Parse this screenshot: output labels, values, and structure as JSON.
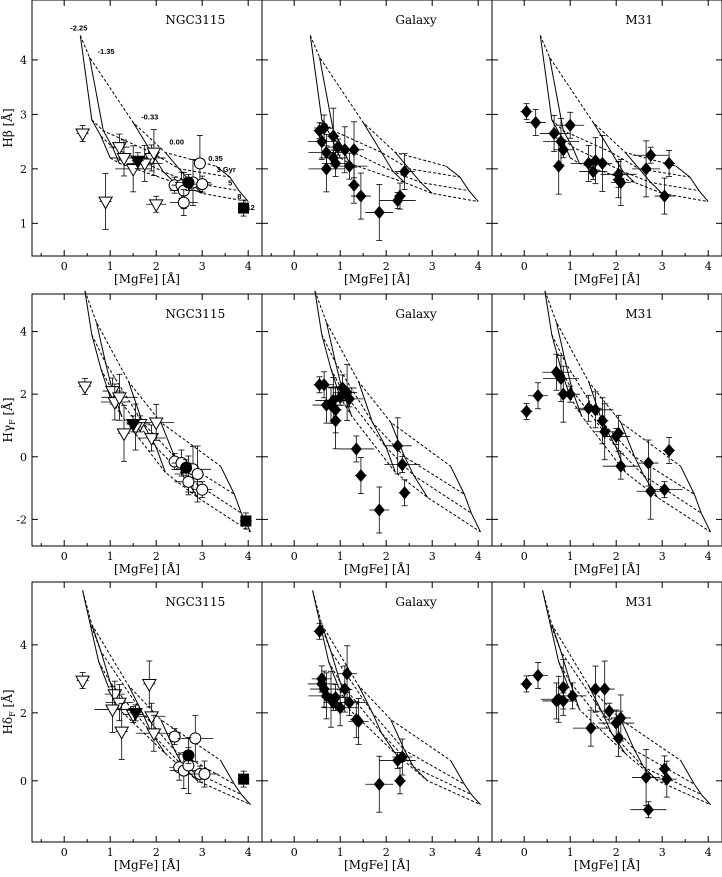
{
  "figure": {
    "x_axis_label": "[MgFe] [Å]",
    "x_ticks": [
      0,
      1,
      2,
      3,
      4
    ],
    "xlim": [
      -0.7,
      4.3
    ],
    "rows": [
      {
        "index_label": "Hβ [Å]",
        "ylim": [
          0.4,
          5.1
        ],
        "y_ticks": [
          1,
          2,
          3,
          4
        ]
      },
      {
        "index_label": "Hγ_F [Å]",
        "ylim": [
          -2.85,
          5.2
        ],
        "y_ticks": [
          -2,
          0,
          2,
          4
        ]
      },
      {
        "index_label": "Hδ_F [Å]",
        "ylim": [
          -1.8,
          5.85
        ],
        "y_ticks": [
          0,
          2,
          4
        ]
      }
    ],
    "columns": [
      "NGC3115",
      "Galaxy",
      "M31"
    ],
    "grid_annotations": {
      "metallicity_labels": [
        "-2.25",
        "-1.35",
        "-0.33",
        "0.00",
        "0.35"
      ],
      "age_labels": [
        "3 Gyr",
        "5",
        "8",
        "12"
      ]
    }
  },
  "chart_data": [
    {
      "type": "scatter",
      "title": "NGC3115",
      "xlabel": "[MgFe] [Å]",
      "ylabel": "Hβ [Å]",
      "ylim": [
        0.4,
        5.1
      ],
      "series": [
        {
          "name": "",
          "marker": "open-triangle-down",
          "x": [
            0.4,
            1.2,
            1.3,
            1.5,
            0.9,
            2.0,
            1.9,
            1.75,
            1.95
          ],
          "y": [
            2.65,
            2.4,
            2.2,
            2.0,
            1.4,
            1.35,
            2.2,
            2.1,
            2.3
          ]
        },
        {
          "name": "",
          "marker": "filled-triangle-down",
          "x": [
            1.6
          ],
          "y": [
            2.15
          ]
        },
        {
          "name": "",
          "marker": "open-circle",
          "x": [
            2.4,
            2.55,
            2.6,
            2.8,
            2.95,
            3.0,
            2.6
          ],
          "y": [
            1.7,
            1.7,
            1.6,
            1.75,
            2.1,
            1.72,
            1.38
          ]
        },
        {
          "name": "",
          "marker": "filled-circle",
          "x": [
            2.7
          ],
          "y": [
            1.75
          ]
        },
        {
          "name": "",
          "marker": "filled-square",
          "x": [
            3.9
          ],
          "y": [
            1.28
          ]
        }
      ]
    },
    {
      "type": "scatter",
      "title": "Galaxy",
      "xlabel": "[MgFe] [Å]",
      "ylabel": "Hβ [Å]",
      "ylim": [
        0.4,
        5.1
      ],
      "series": [
        {
          "name": "",
          "marker": "filled-diamond",
          "x": [
            0.55,
            0.65,
            0.6,
            0.7,
            0.85,
            0.95,
            0.9,
            0.7,
            1.1,
            1.3,
            0.85,
            1.2,
            1.3,
            1.45,
            1.85,
            2.25,
            2.3,
            2.4
          ],
          "y": [
            2.7,
            2.75,
            2.5,
            2.0,
            2.6,
            2.4,
            2.1,
            2.3,
            2.35,
            2.35,
            2.2,
            2.05,
            1.7,
            1.5,
            1.2,
            1.42,
            1.5,
            1.95
          ]
        }
      ]
    },
    {
      "type": "scatter",
      "title": "M31",
      "xlabel": "[MgFe] [Å]",
      "ylabel": "Hβ [Å]",
      "ylim": [
        0.4,
        5.1
      ],
      "series": [
        {
          "name": "",
          "marker": "filled-diamond",
          "x": [
            0.05,
            0.25,
            0.65,
            0.8,
            0.75,
            0.85,
            1.0,
            1.4,
            1.55,
            1.7,
            1.5,
            2.05,
            2.05,
            2.1,
            2.65,
            2.75,
            3.15,
            3.05
          ],
          "y": [
            3.05,
            2.85,
            2.65,
            2.5,
            2.05,
            2.35,
            2.8,
            2.1,
            2.15,
            2.1,
            1.95,
            1.9,
            1.8,
            1.75,
            2.0,
            2.25,
            2.1,
            1.5
          ]
        }
      ]
    },
    {
      "type": "scatter",
      "title": "NGC3115",
      "xlabel": "[MgFe] [Å]",
      "ylabel": "Hγ_F [Å]",
      "ylim": [
        -2.85,
        5.2
      ],
      "series": [
        {
          "name": "",
          "marker": "open-triangle-down",
          "x": [
            0.45,
            1.05,
            1.1,
            1.2,
            1.3,
            1.65,
            1.9,
            2.0,
            1.55
          ],
          "y": [
            2.25,
            2.1,
            1.75,
            1.9,
            0.75,
            1.05,
            0.6,
            1.1,
            0.95
          ]
        },
        {
          "name": "",
          "marker": "filled-triangle-down",
          "x": [
            1.5
          ],
          "y": [
            1.05
          ]
        },
        {
          "name": "",
          "marker": "open-circle",
          "x": [
            2.4,
            2.55,
            2.7,
            2.8,
            2.9,
            3.0,
            2.7
          ],
          "y": [
            -0.15,
            -0.2,
            -0.55,
            -0.4,
            -0.55,
            -1.05,
            -0.8
          ]
        },
        {
          "name": "",
          "marker": "filled-circle",
          "x": [
            2.65
          ],
          "y": [
            -0.35
          ]
        },
        {
          "name": "",
          "marker": "filled-square",
          "x": [
            3.95
          ],
          "y": [
            -2.05
          ]
        }
      ]
    },
    {
      "type": "scatter",
      "title": "Galaxy",
      "xlabel": "[MgFe] [Å]",
      "ylabel": "Hγ_F [Å]",
      "ylim": [
        -2.85,
        5.2
      ],
      "series": [
        {
          "name": "",
          "marker": "filled-diamond",
          "x": [
            0.55,
            0.65,
            0.7,
            0.85,
            0.9,
            1.0,
            1.05,
            0.8,
            0.9,
            1.15,
            1.2,
            1.35,
            1.45,
            1.85,
            2.25,
            2.35,
            2.4
          ],
          "y": [
            2.3,
            2.3,
            1.65,
            1.8,
            1.15,
            1.9,
            2.2,
            1.65,
            1.5,
            2.05,
            1.85,
            0.25,
            -0.6,
            -1.7,
            0.35,
            -0.25,
            -1.15
          ]
        }
      ]
    },
    {
      "type": "scatter",
      "title": "M31",
      "xlabel": "[MgFe] [Å]",
      "ylabel": "Hγ_F [Å]",
      "ylim": [
        -2.85,
        5.2
      ],
      "series": [
        {
          "name": "",
          "marker": "filled-diamond",
          "x": [
            0.05,
            0.3,
            0.7,
            0.8,
            0.85,
            1.0,
            1.4,
            1.55,
            1.7,
            1.75,
            2.0,
            2.1,
            2.05,
            2.7,
            2.75,
            3.05,
            3.15
          ],
          "y": [
            1.45,
            1.95,
            2.7,
            2.5,
            2.0,
            2.0,
            1.55,
            1.5,
            1.15,
            0.8,
            0.65,
            -0.3,
            0.75,
            -0.2,
            -1.1,
            -1.05,
            0.2
          ]
        }
      ]
    },
    {
      "type": "scatter",
      "title": "NGC3115",
      "xlabel": "[MgFe] [Å]",
      "ylabel": "Hδ_F [Å]",
      "ylim": [
        -1.8,
        5.85
      ],
      "series": [
        {
          "name": "",
          "marker": "open-triangle-down",
          "x": [
            0.4,
            1.1,
            1.2,
            1.05,
            1.25,
            1.5,
            1.9,
            1.95,
            1.85
          ],
          "y": [
            2.95,
            2.55,
            2.3,
            2.1,
            1.45,
            1.95,
            1.9,
            1.4,
            2.85
          ]
        },
        {
          "name": "",
          "marker": "filled-triangle-down",
          "x": [
            1.55
          ],
          "y": [
            2.0
          ]
        },
        {
          "name": "",
          "marker": "open-circle",
          "x": [
            2.4,
            2.5,
            2.6,
            2.85,
            2.7,
            2.95,
            3.05
          ],
          "y": [
            1.3,
            0.4,
            0.3,
            1.25,
            0.45,
            0.2,
            0.2
          ]
        },
        {
          "name": "",
          "marker": "filled-circle",
          "x": [
            2.7
          ],
          "y": [
            0.75
          ]
        },
        {
          "name": "",
          "marker": "filled-square",
          "x": [
            3.9
          ],
          "y": [
            0.05
          ]
        }
      ]
    },
    {
      "type": "scatter",
      "title": "Galaxy",
      "xlabel": "[MgFe] [Å]",
      "ylabel": "Hδ_F [Å]",
      "ylim": [
        -1.8,
        5.85
      ],
      "series": [
        {
          "name": "",
          "marker": "filled-diamond",
          "x": [
            0.55,
            0.6,
            0.65,
            0.7,
            0.8,
            0.85,
            0.9,
            1.0,
            1.1,
            1.15,
            0.6,
            1.2,
            1.35,
            1.4,
            1.85,
            2.25,
            2.3,
            2.35
          ],
          "y": [
            4.4,
            3.0,
            2.7,
            2.5,
            2.4,
            2.3,
            2.45,
            2.15,
            2.7,
            3.15,
            2.85,
            2.3,
            1.8,
            1.75,
            -0.1,
            0.6,
            0.0,
            0.7
          ]
        }
      ]
    },
    {
      "type": "scatter",
      "title": "M31",
      "xlabel": "[MgFe] [Å]",
      "ylabel": "Hδ_F [Å]",
      "ylim": [
        -1.8,
        5.85
      ],
      "series": [
        {
          "name": "",
          "marker": "filled-diamond",
          "x": [
            0.05,
            0.3,
            0.7,
            0.75,
            0.85,
            0.85,
            1.05,
            1.45,
            1.55,
            1.75,
            1.85,
            2.0,
            2.05,
            2.1,
            2.65,
            2.7,
            3.05,
            3.1
          ],
          "y": [
            2.85,
            3.1,
            2.35,
            2.4,
            2.75,
            2.35,
            2.5,
            1.55,
            2.7,
            2.7,
            2.05,
            1.7,
            1.25,
            1.85,
            0.1,
            -0.85,
            0.35,
            0.05
          ]
        }
      ]
    }
  ],
  "model_grid": {
    "metallicities": [
      "-2.25",
      "-1.35",
      "-0.33",
      "0.00",
      "0.35"
    ],
    "ages": [
      "3 Gyr",
      "5",
      "8",
      "12"
    ],
    "hbeta": {
      "z": [
        {
          "mgfe": [
            0.35,
            0.6,
            0.8,
            1.0
          ],
          "idx": [
            4.45,
            2.9,
            2.6,
            2.2
          ]
        },
        {
          "mgfe": [
            0.55,
            0.85,
            1.05,
            1.2
          ],
          "idx": [
            4.05,
            2.7,
            2.4,
            2.1
          ]
        },
        {
          "mgfe": [
            1.5,
            1.9,
            2.15,
            2.4
          ],
          "idx": [
            2.85,
            2.3,
            1.95,
            1.75
          ]
        },
        {
          "mgfe": [
            2.2,
            2.5,
            2.75,
            3.0
          ],
          "idx": [
            2.3,
            2.0,
            1.75,
            1.55
          ]
        },
        {
          "mgfe": [
            3.3,
            3.6,
            3.8,
            4.0
          ],
          "idx": [
            2.05,
            1.85,
            1.6,
            1.4
          ]
        }
      ]
    },
    "hgamma": {
      "z": [
        {
          "mgfe": [
            0.45,
            0.6,
            0.8,
            1.0
          ],
          "idx": [
            5.3,
            3.9,
            2.8,
            1.9
          ]
        },
        {
          "mgfe": [
            0.7,
            0.9,
            1.05,
            1.25
          ],
          "idx": [
            4.3,
            3.0,
            2.1,
            1.3
          ]
        },
        {
          "mgfe": [
            1.4,
            1.7,
            2.0,
            2.2
          ],
          "idx": [
            2.4,
            1.1,
            0.3,
            -0.5
          ]
        },
        {
          "mgfe": [
            2.1,
            2.4,
            2.6,
            2.9
          ],
          "idx": [
            1.1,
            0.0,
            -0.6,
            -1.3
          ]
        },
        {
          "mgfe": [
            3.4,
            3.7,
            3.85,
            4.05
          ],
          "idx": [
            -0.3,
            -1.2,
            -1.8,
            -2.4
          ]
        }
      ]
    },
    "hdelta": {
      "z": [
        {
          "mgfe": [
            0.4,
            0.55,
            0.75,
            0.95
          ],
          "idx": [
            5.6,
            4.7,
            3.5,
            2.8
          ]
        },
        {
          "mgfe": [
            0.6,
            0.8,
            1.0,
            1.2
          ],
          "idx": [
            4.6,
            3.8,
            2.9,
            2.1
          ]
        },
        {
          "mgfe": [
            1.4,
            1.7,
            1.9,
            2.2
          ],
          "idx": [
            2.8,
            2.0,
            1.4,
            0.8
          ]
        },
        {
          "mgfe": [
            2.1,
            2.4,
            2.6,
            2.9
          ],
          "idx": [
            1.8,
            0.9,
            0.4,
            0.0
          ]
        },
        {
          "mgfe": [
            3.4,
            3.7,
            3.85,
            4.05
          ],
          "idx": [
            0.6,
            -0.1,
            -0.4,
            -0.7
          ]
        }
      ]
    }
  }
}
